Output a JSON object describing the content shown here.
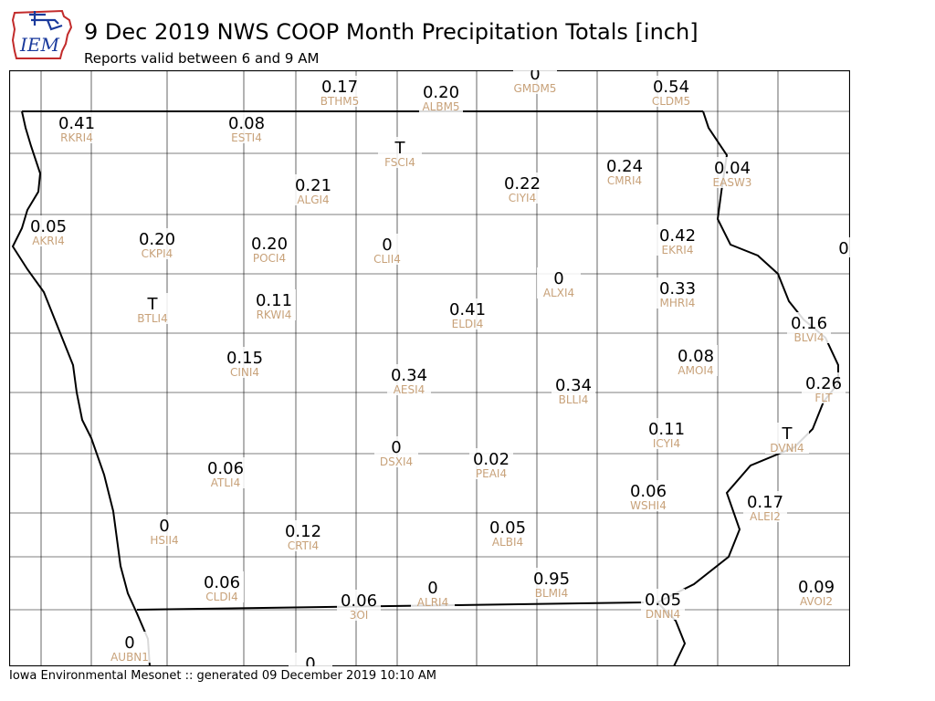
{
  "header": {
    "title": "9 Dec 2019 NWS COOP Month Precipitation Totals [inch]",
    "subtitle": "Reports valid between 6 and 9 AM"
  },
  "logo": {
    "text": "IEM",
    "icon": "iowa-state-outline-logo",
    "colors": {
      "outline": "#c22b2b",
      "accent": "#1a3a9c"
    }
  },
  "footer": {
    "text": "Iowa Environmental Mesonet :: generated 09 December 2019 10:10 AM"
  },
  "colors": {
    "value_text": "#000000",
    "station_text": "#c8a27a",
    "boundary": "#000000"
  },
  "stations": [
    {
      "id": "BTHM5",
      "value": "0.17"
    },
    {
      "id": "ALBM5",
      "value": "0.20"
    },
    {
      "id": "GMDM5",
      "value": "0"
    },
    {
      "id": "CLDM5",
      "value": "0.54"
    },
    {
      "id": "RKRI4",
      "value": "0.41"
    },
    {
      "id": "ESTI4",
      "value": "0.08"
    },
    {
      "id": "FSCI4",
      "value": "T"
    },
    {
      "id": "ALGI4",
      "value": "0.21"
    },
    {
      "id": "CIYI4",
      "value": "0.22"
    },
    {
      "id": "CMRI4",
      "value": "0.24"
    },
    {
      "id": "EASW3",
      "value": "0.04"
    },
    {
      "id": "AKRI4",
      "value": "0.05"
    },
    {
      "id": "CKPI4",
      "value": "0.20"
    },
    {
      "id": "POCI4",
      "value": "0.20"
    },
    {
      "id": "CLII4",
      "value": "0"
    },
    {
      "id": "EKRI4",
      "value": "0.42"
    },
    {
      "id": "",
      "value": "0"
    },
    {
      "id": "ALXI4",
      "value": "0"
    },
    {
      "id": "BTLI4",
      "value": "T"
    },
    {
      "id": "RKWI4",
      "value": "0.11"
    },
    {
      "id": "ELDI4",
      "value": "0.41"
    },
    {
      "id": "MHRI4",
      "value": "0.33"
    },
    {
      "id": "BLVI4",
      "value": "0.16"
    },
    {
      "id": "CINI4",
      "value": "0.15"
    },
    {
      "id": "AMOI4",
      "value": "0.08"
    },
    {
      "id": "AESI4",
      "value": "0.34"
    },
    {
      "id": "BLLI4",
      "value": "0.34"
    },
    {
      "id": "FLT",
      "value": "0.26"
    },
    {
      "id": "ICYI4",
      "value": "0.11"
    },
    {
      "id": "DVNI4",
      "value": "T"
    },
    {
      "id": "DSXI4",
      "value": "0"
    },
    {
      "id": "PEAI4",
      "value": "0.02"
    },
    {
      "id": "ATLI4",
      "value": "0.06"
    },
    {
      "id": "WSHI4",
      "value": "0.06"
    },
    {
      "id": "ALEI2",
      "value": "0.17"
    },
    {
      "id": "HSII4",
      "value": "0"
    },
    {
      "id": "CRTI4",
      "value": "0.12"
    },
    {
      "id": "ALBI4",
      "value": "0.05"
    },
    {
      "id": "CLDI4",
      "value": "0.06"
    },
    {
      "id": "BLMI4",
      "value": "0.95"
    },
    {
      "id": "ALRI4",
      "value": "0"
    },
    {
      "id": "3OI",
      "value": "0.06"
    },
    {
      "id": "DNNI4",
      "value": "0.05"
    },
    {
      "id": "AVOI2",
      "value": "0.09"
    },
    {
      "id": "AUBN1",
      "value": "0"
    },
    {
      "id": "",
      "value": "0"
    }
  ]
}
